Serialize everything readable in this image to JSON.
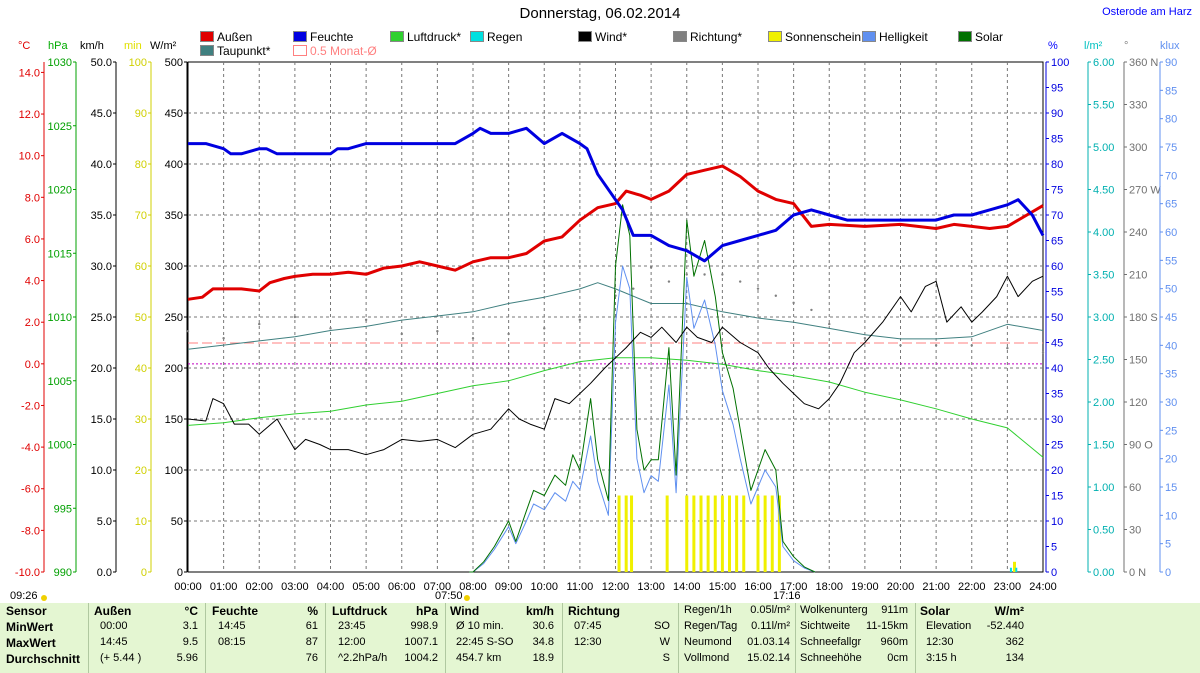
{
  "header": {
    "title": "Donnerstag, 06.02.2014",
    "station": "Osterode am Harz"
  },
  "legend": [
    {
      "label": "Außen",
      "color": "#e00000"
    },
    {
      "label": "Feuchte",
      "color": "#0000e0"
    },
    {
      "label": "Luftdruck*",
      "color": "#30d030"
    },
    {
      "label": "Regen",
      "color": "#00e0e0"
    },
    {
      "label": "Wind*",
      "color": "#000000"
    },
    {
      "label": "Richtung*",
      "color": "#808080"
    },
    {
      "label": "Sonnenschein",
      "color": "#f0f000"
    },
    {
      "label": "Helligkeit",
      "color": "#6090f0"
    },
    {
      "label": "Solar",
      "color": "#007000"
    },
    {
      "label": "Taupunkt*",
      "color": "#408080"
    },
    {
      "label": "0.5 Monat-Ø",
      "color": "#ff8080"
    }
  ],
  "axis_units": {
    "temp": "°C",
    "pressure": "hPa",
    "wind": "km/h",
    "sun": "min",
    "solar": "W/m²",
    "humidity": "%",
    "rain": "l/m²",
    "direction": "°",
    "lux": "klux"
  },
  "axis_ticks": {
    "temp": [
      "14.0",
      "12.0",
      "10.0",
      "8.0",
      "6.0",
      "4.0",
      "2.0",
      "0.0",
      "-2.0",
      "-4.0",
      "-6.0",
      "-8.0",
      "-10.0"
    ],
    "pressure": [
      "1030",
      "1025",
      "1020",
      "1015",
      "1010",
      "1005",
      "1000",
      "995",
      "990"
    ],
    "wind": [
      "50.0",
      "45.0",
      "40.0",
      "35.0",
      "30.0",
      "25.0",
      "20.0",
      "15.0",
      "10.0",
      "5.0",
      "0.0"
    ],
    "sun": [
      "100",
      "90",
      "80",
      "70",
      "60",
      "50",
      "40",
      "30",
      "20",
      "10",
      "0"
    ],
    "solar": [
      "500",
      "450",
      "400",
      "350",
      "300",
      "250",
      "200",
      "150",
      "100",
      "50",
      "0"
    ],
    "humidity": [
      "100",
      "95",
      "90",
      "85",
      "80",
      "75",
      "70",
      "65",
      "60",
      "55",
      "50",
      "45",
      "40",
      "35",
      "30",
      "25",
      "20",
      "15",
      "10",
      "5",
      "0"
    ],
    "rain": [
      "6.00",
      "5.50",
      "5.00",
      "4.50",
      "4.00",
      "3.50",
      "3.00",
      "2.50",
      "2.00",
      "1.50",
      "1.00",
      "0.50",
      "0.00"
    ],
    "direction": [
      "360 N",
      "330",
      "300",
      "270 W",
      "240",
      "210",
      "180 S",
      "150",
      "120",
      "90 O",
      "60",
      "30",
      "0 N"
    ],
    "lux": [
      "90",
      "85",
      "80",
      "75",
      "70",
      "65",
      "60",
      "55",
      "50",
      "45",
      "40",
      "35",
      "30",
      "25",
      "20",
      "15",
      "10",
      "5",
      "0"
    ],
    "x": [
      "00:00",
      "01:00",
      "02:00",
      "03:00",
      "04:00",
      "05:00",
      "06:00",
      "07:00",
      "08:00",
      "09:00",
      "10:00",
      "11:00",
      "12:00",
      "13:00",
      "14:00",
      "15:00",
      "16:00",
      "17:00",
      "18:00",
      "19:00",
      "20:00",
      "21:00",
      "22:00",
      "23:00",
      "24:00"
    ]
  },
  "sun_times": {
    "rise": "07:50",
    "set": "17:16"
  },
  "updated": "09:26",
  "chart_data": {
    "type": "line",
    "title": "Donnerstag, 06.02.2014",
    "x_unit": "hours",
    "series": [
      {
        "name": "Außen",
        "unit": "°C",
        "color": "#e00000",
        "x": [
          0,
          0.4,
          0.7,
          1,
          1.5,
          2,
          2.3,
          2.7,
          3,
          3.5,
          4,
          4.5,
          5,
          5.5,
          6,
          6.5,
          7,
          7.5,
          8,
          8.5,
          9,
          9.5,
          10,
          10.5,
          11,
          11.5,
          12,
          12.3,
          12.7,
          13,
          13.5,
          14,
          14.5,
          15,
          15.5,
          16,
          16.5,
          17,
          17.5,
          18,
          19,
          20,
          21,
          21.5,
          22,
          22.5,
          23,
          23.5,
          24
        ],
        "y": [
          3.1,
          3.2,
          3.6,
          3.6,
          3.6,
          3.5,
          3.9,
          4.1,
          4.2,
          4.3,
          4.3,
          4.4,
          4.3,
          4.6,
          4.7,
          4.9,
          4.7,
          4.5,
          4.9,
          5.1,
          5.1,
          5.3,
          5.9,
          6.1,
          6.9,
          7.5,
          7.7,
          8.3,
          8.1,
          7.9,
          8.3,
          9.1,
          9.3,
          9.5,
          9.0,
          8.3,
          7.9,
          7.7,
          6.6,
          6.7,
          6.6,
          6.7,
          6.5,
          6.7,
          6.6,
          6.5,
          6.6,
          7.1,
          7.6
        ]
      },
      {
        "name": "Feuchte",
        "unit": "%",
        "color": "#0000e0",
        "x": [
          0,
          0.5,
          1,
          1.2,
          1.5,
          2,
          2.2,
          2.5,
          3,
          3.5,
          4,
          4.2,
          4.5,
          5,
          5.5,
          6,
          6.5,
          7,
          7.5,
          8,
          8.2,
          8.5,
          9,
          9.5,
          10,
          10.5,
          11,
          11.2,
          11.5,
          12,
          12.2,
          12.5,
          13,
          13.5,
          14,
          14.5,
          15,
          15.5,
          16,
          16.5,
          17,
          17.5,
          18,
          18.5,
          19,
          19.5,
          20,
          20.5,
          21,
          21.5,
          22,
          22.5,
          23,
          23.3,
          23.7,
          24
        ],
        "y": [
          84,
          84,
          83,
          82,
          82,
          83,
          83,
          82,
          82,
          82,
          82,
          83,
          83,
          84,
          84,
          84,
          84,
          84,
          84,
          86,
          87,
          86,
          86,
          87,
          84,
          86,
          84,
          83,
          78,
          73,
          71,
          66,
          66,
          64,
          63,
          61,
          64,
          65,
          66,
          67,
          70,
          71,
          70,
          69,
          69,
          69,
          69,
          69,
          69,
          70,
          70,
          71,
          72,
          73,
          70,
          66
        ]
      },
      {
        "name": "Luftdruck*",
        "unit": "hPa",
        "color": "#30d030",
        "x": [
          0,
          1,
          2,
          3,
          4,
          5,
          6,
          7,
          8,
          9,
          10,
          11,
          12,
          13,
          14,
          15,
          16,
          17,
          18,
          19,
          20,
          21,
          22,
          23,
          24
        ],
        "y": [
          1001.5,
          1001.7,
          1002.1,
          1002.4,
          1002.6,
          1003.1,
          1003.4,
          1004.0,
          1004.6,
          1005.0,
          1005.8,
          1006.5,
          1006.8,
          1006.8,
          1006.6,
          1006.3,
          1005.8,
          1005.4,
          1004.9,
          1004.1,
          1003.5,
          1002.8,
          1002.0,
          1001.3,
          999.0
        ]
      },
      {
        "name": "Taupunkt*",
        "unit": "°C",
        "color": "#408080",
        "x": [
          0,
          1,
          2,
          3,
          4,
          5,
          6,
          7,
          8,
          9,
          10,
          11,
          11.5,
          12,
          13,
          14,
          15,
          16,
          17,
          18,
          19,
          20,
          21,
          22,
          23,
          24
        ],
        "y": [
          0.7,
          0.9,
          1.1,
          1.3,
          1.6,
          1.8,
          2.1,
          2.3,
          2.5,
          2.9,
          3.2,
          3.6,
          3.9,
          3.6,
          2.9,
          2.9,
          2.5,
          2.2,
          2.0,
          1.7,
          1.4,
          1.2,
          1.2,
          1.3,
          1.9,
          1.6
        ]
      },
      {
        "name": "Wind*",
        "unit": "km/h",
        "color": "#000000",
        "x": [
          0,
          0.5,
          0.7,
          1,
          1.3,
          1.7,
          2,
          2.5,
          3,
          3.3,
          3.7,
          4,
          4.5,
          5,
          5.5,
          6,
          6.5,
          7,
          7.5,
          8,
          8.5,
          9,
          9.3,
          9.6,
          10,
          10.3,
          10.7,
          11,
          11.3,
          11.7,
          12,
          12.3,
          12.7,
          13,
          13.3,
          13.7,
          14,
          14.3,
          14.7,
          15,
          15.5,
          16,
          16.3,
          16.7,
          17,
          17.3,
          17.7,
          18,
          18.3,
          18.7,
          19,
          19.5,
          20,
          20.3,
          20.7,
          21,
          21.3,
          21.7,
          22,
          22.3,
          22.7,
          23,
          23.3,
          23.7,
          24
        ],
        "y": [
          15,
          14.8,
          17,
          16.5,
          14.5,
          14.5,
          13.5,
          15,
          12,
          13,
          12.5,
          12,
          12,
          11.5,
          12,
          13,
          12.8,
          13,
          12.2,
          13.5,
          14,
          16,
          15,
          14.5,
          14,
          17,
          16.5,
          17.5,
          18.5,
          20,
          21,
          22,
          23.5,
          23,
          24,
          22.5,
          24,
          23,
          22.5,
          24,
          22.5,
          21.5,
          20,
          18.5,
          17.5,
          16.5,
          16,
          17,
          18.5,
          21.5,
          22.5,
          24.5,
          27,
          25.5,
          28,
          28.5,
          24.5,
          26,
          24.5,
          25.5,
          27,
          29,
          27,
          28.5,
          29
        ]
      },
      {
        "name": "Richtung*",
        "unit": "°",
        "color": "#808080",
        "x": [
          0,
          1,
          2,
          3,
          4,
          5,
          6,
          7,
          8,
          9,
          10,
          11,
          12,
          12.5,
          13,
          13.5,
          14,
          14.5,
          15,
          15.5,
          16,
          16.5,
          17,
          17.5,
          18,
          19,
          20,
          21,
          22,
          23,
          24
        ],
        "y": [
          170,
          165,
          175,
          180,
          172,
          178,
          168,
          170,
          165,
          168,
          172,
          178,
          195,
          200,
          215,
          205,
          210,
          210,
          210,
          205,
          200,
          195,
          190,
          185,
          175,
          165,
          160,
          160,
          160,
          158,
          155
        ]
      },
      {
        "name": "Solar",
        "unit": "W/m²",
        "color": "#007000",
        "x": [
          7.9,
          8,
          8.3,
          8.6,
          9,
          9.2,
          9.5,
          9.7,
          10,
          10.3,
          10.6,
          10.8,
          11,
          11.3,
          11.5,
          11.8,
          12,
          12.2,
          12.4,
          12.6,
          12.8,
          13,
          13.2,
          13.5,
          13.7,
          14,
          14.2,
          14.5,
          14.8,
          15,
          15.3,
          15.5,
          15.8,
          16,
          16.2,
          16.5,
          16.7,
          17,
          17.3,
          17.6
        ],
        "y": [
          0,
          0,
          10,
          25,
          50,
          30,
          60,
          80,
          75,
          95,
          85,
          115,
          100,
          170,
          110,
          70,
          300,
          360,
          330,
          140,
          100,
          110,
          110,
          220,
          95,
          345,
          290,
          325,
          270,
          215,
          180,
          140,
          80,
          100,
          120,
          100,
          30,
          15,
          5,
          0
        ]
      },
      {
        "name": "Helligkeit",
        "unit": "klux",
        "color": "#6090f0",
        "x": [
          7.9,
          8,
          8.3,
          8.6,
          9,
          9.2,
          9.5,
          9.7,
          10,
          10.3,
          10.6,
          10.8,
          11,
          11.3,
          11.5,
          11.8,
          12,
          12.2,
          12.4,
          12.6,
          12.8,
          13,
          13.2,
          13.5,
          13.7,
          14,
          14.2,
          14.5,
          14.8,
          15,
          15.3,
          15.5,
          15.8,
          16,
          16.2,
          16.5,
          16.7,
          17,
          17.3,
          17.6
        ],
        "y": [
          0,
          0,
          1.5,
          4,
          8,
          5,
          9,
          12,
          11,
          14,
          12.5,
          16,
          14.5,
          24,
          16,
          10,
          44,
          54,
          50,
          20,
          14,
          17,
          16,
          33,
          14,
          52,
          43,
          48,
          40,
          32,
          26,
          20,
          12,
          15,
          18,
          15,
          4.5,
          2,
          0.7,
          0
        ]
      }
    ],
    "sunshine_bars_x": [
      12.1,
      12.3,
      12.45,
      13.45,
      14,
      14.2,
      14.4,
      14.6,
      14.8,
      15,
      15.2,
      15.4,
      15.6,
      16,
      16.2,
      16.4,
      16.6,
      23.2
    ],
    "sunshine_bars_min": [
      15,
      15,
      15,
      15,
      15,
      15,
      15,
      15,
      15,
      15,
      15,
      15,
      15,
      15,
      15,
      15,
      15,
      2
    ],
    "rain_bars_x": [
      23.1,
      23.25
    ],
    "rain_bars_lm2": [
      0.05,
      0.05
    ],
    "month_avg_temp": 1.0
  },
  "summary": {
    "sensor_col": {
      "header": "Sensor",
      "rows": [
        "MinWert",
        "MaxWert",
        "Durchschnitt"
      ]
    },
    "aussen": {
      "header": "Außen",
      "unit": "°C",
      "rows": [
        [
          "00:00",
          "3.1"
        ],
        [
          "14:45",
          "9.5"
        ],
        [
          "(+ 5.44 )",
          "5.96"
        ]
      ]
    },
    "feuchte": {
      "header": "Feuchte",
      "unit": "%",
      "rows": [
        [
          "14:45",
          "61"
        ],
        [
          "08:15",
          "87"
        ],
        [
          "",
          "76"
        ]
      ]
    },
    "luftdruck": {
      "header": "Luftdruck",
      "unit": "hPa",
      "rows": [
        [
          "23:45",
          "998.9"
        ],
        [
          "12:00",
          "1007.1"
        ],
        [
          "^2.2hPa/h",
          "1004.2"
        ]
      ]
    },
    "wind": {
      "header": "Wind",
      "unit": "km/h",
      "rows": [
        [
          "Ø 10 min.",
          "30.6"
        ],
        [
          "22:45     S-SO",
          "34.8"
        ],
        [
          "454.7 km",
          "18.9"
        ]
      ]
    },
    "richtung": {
      "header": "Richtung",
      "rows": [
        [
          "07:45",
          "SO"
        ],
        [
          "12:30",
          "W"
        ],
        [
          "",
          "S"
        ]
      ]
    },
    "regen": {
      "rows": [
        [
          "Regen/1h",
          "0.05l/m²"
        ],
        [
          "Regen/Tag",
          "0.11l/m²"
        ],
        [
          "Neumond",
          "01.03.14"
        ],
        [
          "Vollmond",
          "15.02.14"
        ]
      ]
    },
    "wolken": {
      "rows": [
        [
          "Wolkenunterg",
          "911m"
        ],
        [
          "Sichtweite",
          "11-15km"
        ],
        [
          "Schneefallgr",
          "960m"
        ],
        [
          "Schneehöhe",
          "0cm"
        ]
      ]
    },
    "solar": {
      "header": "Solar",
      "unit": "W/m²",
      "rows": [
        [
          "Elevation",
          "-52.440"
        ],
        [
          "12:30",
          "362"
        ],
        [
          "3:15 h",
          "134"
        ]
      ]
    }
  }
}
